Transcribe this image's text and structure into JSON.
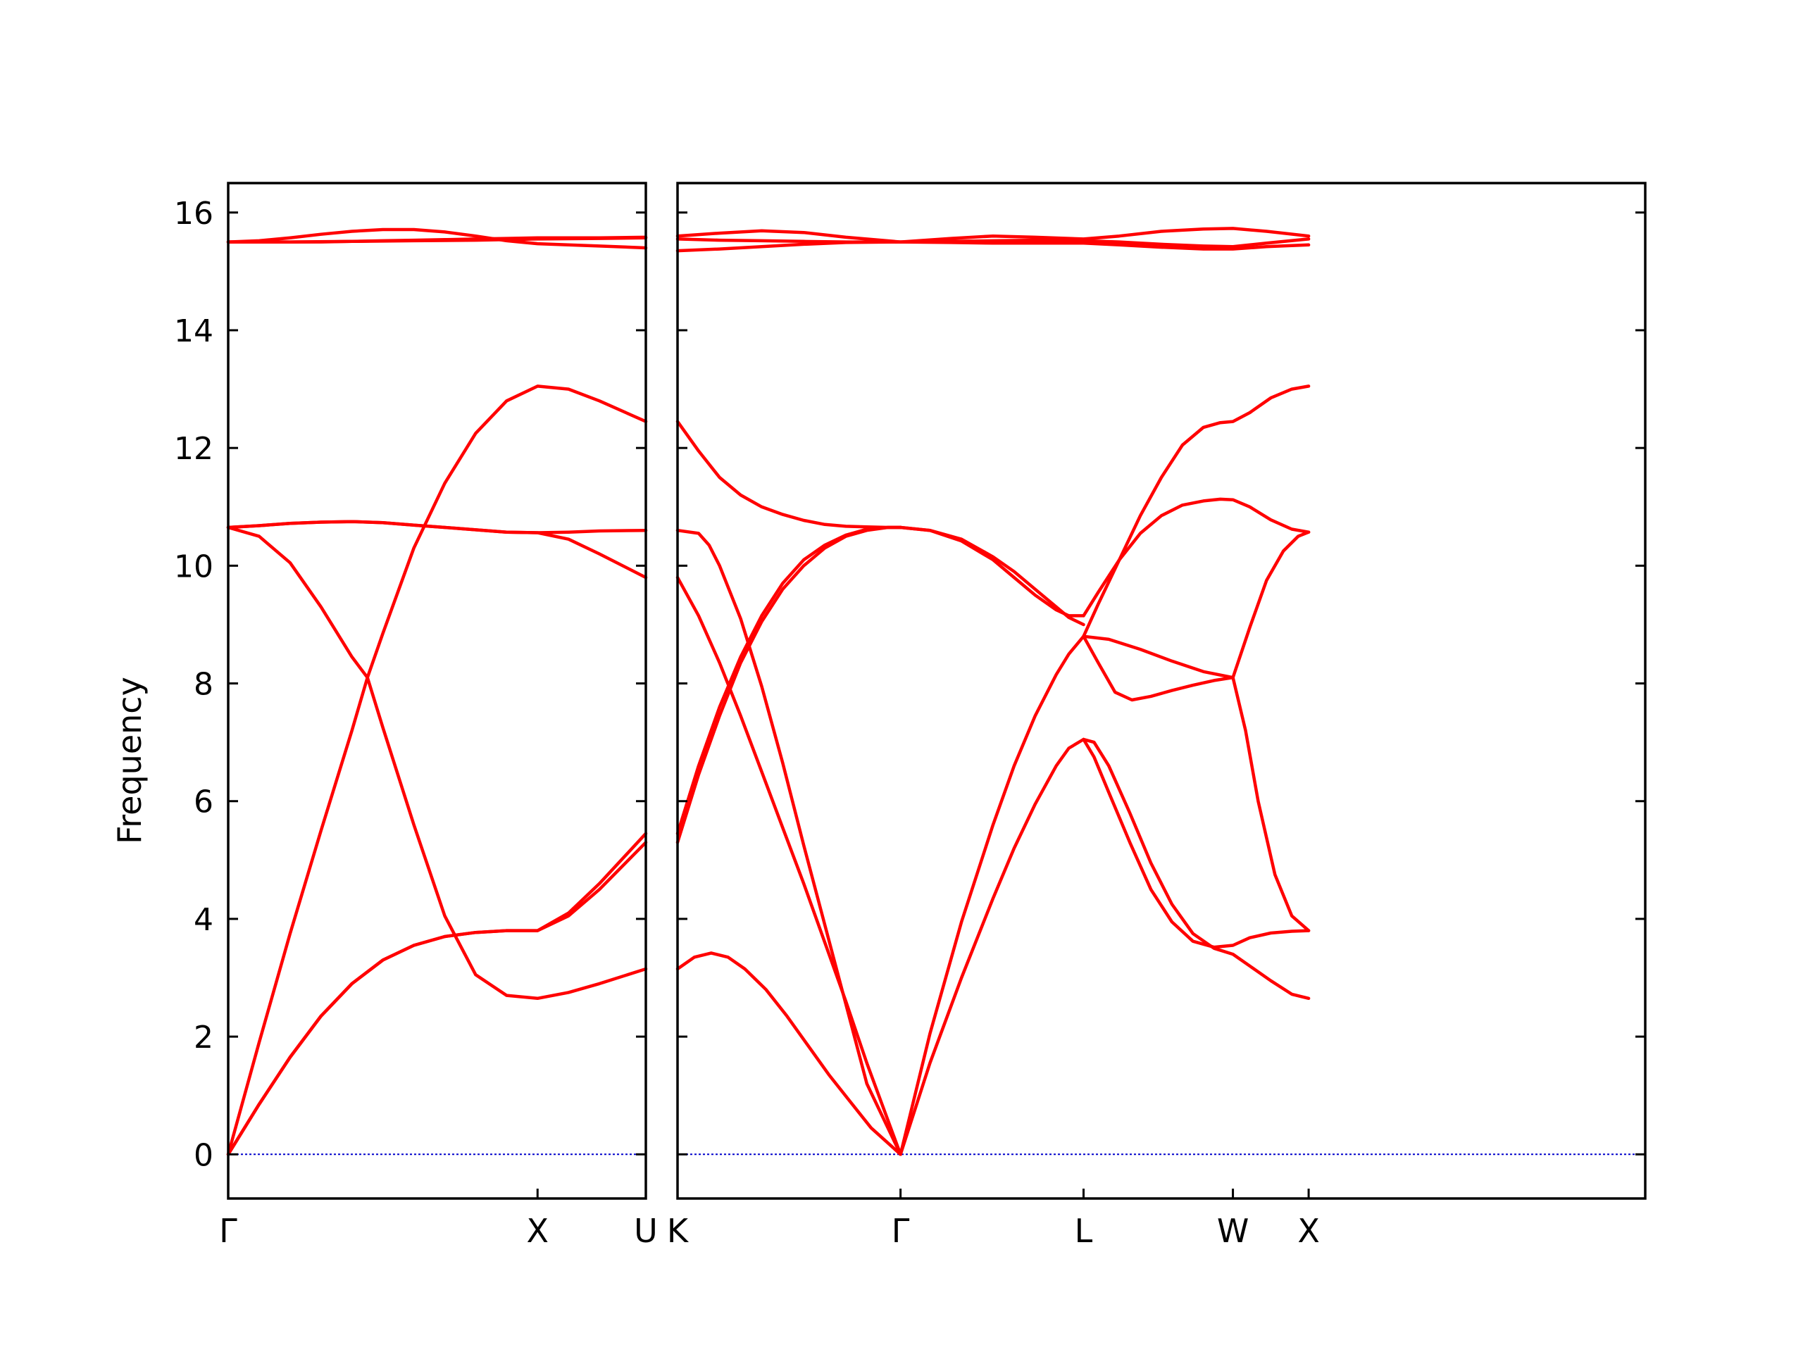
{
  "chart_data": {
    "type": "line",
    "title": "",
    "ylabel": "Frequency",
    "ylim": [
      -0.75,
      16.5
    ],
    "y_ticks": [
      0,
      2,
      4,
      6,
      8,
      10,
      12,
      14,
      16
    ],
    "grid": false,
    "colors": {
      "bands": "#ff0000",
      "zero_line": "#0000cc",
      "axes": "#000000"
    },
    "panels": [
      {
        "name": "left",
        "xlim": [
          0,
          1.35
        ],
        "ticks": [
          {
            "x": 0,
            "label": "Γ"
          },
          {
            "x": 1.0,
            "label": "X"
          },
          {
            "x": 1.35,
            "label": "U"
          }
        ],
        "series": [
          {
            "x": [
              0,
              0.1,
              0.2,
              0.3,
              0.4,
              0.5,
              0.6,
              0.7,
              0.8,
              0.9,
              1.0,
              1.1,
              1.2,
              1.35
            ],
            "y": [
              0,
              0.85,
              1.65,
              2.35,
              2.9,
              3.3,
              3.55,
              3.7,
              3.77,
              3.8,
              3.8,
              4.1,
              4.6,
              5.45
            ]
          },
          {
            "x": [
              0,
              0.1,
              0.2,
              0.3,
              0.4,
              0.5,
              0.6,
              0.7,
              0.8,
              0.9,
              1.0,
              1.1,
              1.2,
              1.35
            ],
            "y": [
              0,
              0.85,
              1.65,
              2.35,
              2.9,
              3.3,
              3.55,
              3.7,
              3.77,
              3.8,
              3.8,
              4.05,
              4.5,
              5.3
            ]
          },
          {
            "x": [
              0,
              0.1,
              0.2,
              0.3,
              0.4,
              0.45,
              0.5,
              0.6,
              0.7,
              0.8,
              0.9,
              1.0,
              1.1,
              1.2,
              1.35
            ],
            "y": [
              0,
              1.9,
              3.75,
              5.5,
              7.2,
              8.1,
              8.85,
              10.3,
              11.4,
              12.25,
              12.8,
              13.05,
              13.0,
              12.8,
              12.45
            ]
          },
          {
            "x": [
              0,
              0.1,
              0.2,
              0.3,
              0.4,
              0.45,
              0.5,
              0.6,
              0.7,
              0.8,
              0.9,
              1.0,
              1.1,
              1.2,
              1.35
            ],
            "y": [
              10.65,
              10.5,
              10.05,
              9.3,
              8.45,
              8.1,
              7.25,
              5.6,
              4.05,
              3.05,
              2.7,
              2.65,
              2.75,
              2.9,
              3.15
            ]
          },
          {
            "x": [
              0,
              0.1,
              0.2,
              0.3,
              0.4,
              0.5,
              0.6,
              0.7,
              0.8,
              0.9,
              1.0,
              1.1,
              1.2,
              1.35
            ],
            "y": [
              10.65,
              10.68,
              10.72,
              10.74,
              10.75,
              10.73,
              10.69,
              10.65,
              10.61,
              10.57,
              10.56,
              10.45,
              10.2,
              9.8
            ]
          },
          {
            "x": [
              0,
              0.1,
              0.2,
              0.3,
              0.4,
              0.5,
              0.6,
              0.7,
              0.8,
              0.9,
              1.0,
              1.1,
              1.2,
              1.35
            ],
            "y": [
              10.65,
              10.68,
              10.72,
              10.74,
              10.75,
              10.73,
              10.69,
              10.65,
              10.61,
              10.57,
              10.56,
              10.57,
              10.59,
              10.6
            ]
          },
          {
            "x": [
              0,
              0.1,
              0.2,
              0.3,
              0.4,
              0.5,
              0.6,
              0.7,
              0.8,
              0.9,
              1.0,
              1.1,
              1.2,
              1.35
            ],
            "y": [
              15.5,
              15.52,
              15.57,
              15.63,
              15.68,
              15.71,
              15.71,
              15.67,
              15.6,
              15.52,
              15.47,
              15.45,
              15.43,
              15.4
            ]
          },
          {
            "x": [
              0,
              0.1,
              0.2,
              0.3,
              0.4,
              0.5,
              0.6,
              0.7,
              0.8,
              0.9,
              1.0,
              1.1,
              1.2,
              1.35
            ],
            "y": [
              15.5,
              15.5,
              15.5,
              15.5,
              15.51,
              15.52,
              15.53,
              15.54,
              15.55,
              15.56,
              15.57,
              15.57,
              15.57,
              15.58
            ]
          },
          {
            "x": [
              0,
              0.2,
              0.4,
              0.6,
              0.8,
              1.0,
              1.2,
              1.35
            ],
            "y": [
              15.5,
              15.5,
              15.51,
              15.52,
              15.53,
              15.55,
              15.56,
              15.57
            ]
          }
        ]
      },
      {
        "name": "right",
        "xlim": [
          0,
          4.6
        ],
        "ticks": [
          {
            "x": 0,
            "label": "K"
          },
          {
            "x": 1.06,
            "label": "Γ"
          },
          {
            "x": 1.93,
            "label": "L"
          },
          {
            "x": 2.64,
            "label": "W"
          },
          {
            "x": 3.0,
            "label": "X"
          }
        ],
        "series": [
          {
            "x": [
              0,
              0.08,
              0.16,
              0.24,
              0.32,
              0.42,
              0.52,
              0.62,
              0.72,
              0.82,
              0.92,
              1.06
            ],
            "y": [
              3.15,
              3.35,
              3.42,
              3.35,
              3.15,
              2.8,
              2.35,
              1.85,
              1.35,
              0.9,
              0.45,
              0
            ]
          },
          {
            "x": [
              0,
              0.1,
              0.2,
              0.3,
              0.4,
              0.5,
              0.6,
              0.7,
              0.8,
              0.9,
              1.06
            ],
            "y": [
              9.8,
              9.15,
              8.35,
              7.45,
              6.5,
              5.55,
              4.6,
              3.6,
              2.6,
              1.55,
              0
            ]
          },
          {
            "x": [
              0,
              0.1,
              0.15,
              0.2,
              0.3,
              0.4,
              0.5,
              0.6,
              0.7,
              0.8,
              0.9,
              1.06
            ],
            "y": [
              10.6,
              10.55,
              10.35,
              10.0,
              9.1,
              7.95,
              6.65,
              5.25,
              3.9,
              2.55,
              1.2,
              0
            ]
          },
          {
            "x": [
              0,
              0.1,
              0.2,
              0.3,
              0.4,
              0.5,
              0.6,
              0.7,
              0.8,
              0.9,
              1.0,
              1.06
            ],
            "y": [
              5.3,
              6.45,
              7.45,
              8.35,
              9.05,
              9.6,
              10.0,
              10.3,
              10.5,
              10.6,
              10.65,
              10.65
            ]
          },
          {
            "x": [
              0,
              0.1,
              0.2,
              0.3,
              0.4,
              0.5,
              0.6,
              0.7,
              0.8,
              0.9,
              1.0,
              1.06
            ],
            "y": [
              5.45,
              6.6,
              7.6,
              8.45,
              9.15,
              9.7,
              10.1,
              10.35,
              10.52,
              10.62,
              10.65,
              10.65
            ]
          },
          {
            "x": [
              0,
              0.1,
              0.2,
              0.3,
              0.4,
              0.5,
              0.6,
              0.7,
              0.8,
              0.9,
              1.0,
              1.06
            ],
            "y": [
              12.45,
              11.95,
              11.5,
              11.2,
              11.0,
              10.87,
              10.77,
              10.7,
              10.67,
              10.66,
              10.65,
              10.65
            ]
          },
          {
            "x": [
              1.06,
              1.2,
              1.35,
              1.5,
              1.6,
              1.7,
              1.8,
              1.86,
              1.93
            ],
            "y": [
              0,
              1.55,
              3.0,
              4.35,
              5.2,
              5.95,
              6.6,
              6.9,
              7.05
            ]
          },
          {
            "x": [
              1.06,
              1.2,
              1.35,
              1.5,
              1.6,
              1.7,
              1.8,
              1.86,
              1.93
            ],
            "y": [
              0,
              2.05,
              3.95,
              5.6,
              6.6,
              7.45,
              8.15,
              8.5,
              8.8
            ]
          },
          {
            "x": [
              1.06,
              1.2,
              1.35,
              1.5,
              1.6,
              1.7,
              1.8,
              1.86,
              1.93
            ],
            "y": [
              10.65,
              10.6,
              10.45,
              10.15,
              9.9,
              9.6,
              9.3,
              9.12,
              9.0
            ]
          },
          {
            "x": [
              1.06,
              1.2,
              1.35,
              1.5,
              1.6,
              1.7,
              1.8,
              1.86,
              1.93
            ],
            "y": [
              10.65,
              10.6,
              10.42,
              10.1,
              9.8,
              9.5,
              9.25,
              9.15,
              9.15
            ]
          },
          {
            "x": [
              1.93,
              1.98,
              2.05,
              2.15,
              2.25,
              2.35,
              2.45,
              2.55,
              2.64,
              2.72,
              2.82,
              2.92,
              3.0
            ],
            "y": [
              7.05,
              7.0,
              6.6,
              5.8,
              4.95,
              4.25,
              3.75,
              3.5,
              3.4,
              3.2,
              2.95,
              2.72,
              2.65
            ]
          },
          {
            "x": [
              1.93,
              1.98,
              2.05,
              2.15,
              2.25,
              2.35,
              2.45,
              2.55,
              2.64,
              2.72,
              2.82,
              2.92,
              3.0
            ],
            "y": [
              7.05,
              6.75,
              6.15,
              5.3,
              4.5,
              3.95,
              3.62,
              3.52,
              3.55,
              3.68,
              3.76,
              3.79,
              3.8
            ]
          },
          {
            "x": [
              1.93,
              2.0,
              2.08,
              2.16,
              2.25,
              2.35,
              2.45,
              2.55,
              2.64
            ],
            "y": [
              8.8,
              8.35,
              7.85,
              7.72,
              7.78,
              7.88,
              7.97,
              8.05,
              8.1
            ]
          },
          {
            "x": [
              1.93,
              2.05,
              2.2,
              2.35,
              2.5,
              2.64
            ],
            "y": [
              8.8,
              8.75,
              8.58,
              8.38,
              8.2,
              8.1
            ]
          },
          {
            "x": [
              2.64,
              2.7,
              2.76,
              2.84,
              2.92,
              3.0
            ],
            "y": [
              8.1,
              7.2,
              6.0,
              4.75,
              4.05,
              3.8
            ]
          },
          {
            "x": [
              2.64,
              2.72,
              2.8,
              2.88,
              2.95,
              3.0
            ],
            "y": [
              8.1,
              8.95,
              9.75,
              10.25,
              10.5,
              10.57
            ]
          },
          {
            "x": [
              1.93,
              2.0,
              2.1,
              2.2,
              2.3,
              2.4,
              2.5,
              2.58,
              2.64,
              2.72,
              2.82,
              2.92,
              3.0
            ],
            "y": [
              9.15,
              9.55,
              10.1,
              10.55,
              10.85,
              11.03,
              11.1,
              11.13,
              11.12,
              11.0,
              10.78,
              10.62,
              10.57
            ]
          },
          {
            "x": [
              1.93,
              2.0,
              2.1,
              2.2,
              2.3,
              2.4,
              2.5,
              2.58,
              2.64,
              2.72,
              2.82,
              2.92,
              3.0
            ],
            "y": [
              8.8,
              9.35,
              10.1,
              10.85,
              11.5,
              12.05,
              12.35,
              12.43,
              12.45,
              12.6,
              12.85,
              13.0,
              13.05
            ]
          },
          {
            "x": [
              0,
              0.2,
              0.4,
              0.6,
              0.8,
              1.06,
              1.3,
              1.5,
              1.7,
              1.93,
              2.1,
              2.3,
              2.5,
              2.64,
              2.8,
              3.0
            ],
            "y": [
              15.6,
              15.65,
              15.69,
              15.66,
              15.58,
              15.5,
              15.56,
              15.6,
              15.58,
              15.55,
              15.6,
              15.68,
              15.72,
              15.73,
              15.68,
              15.6
            ]
          },
          {
            "x": [
              0,
              0.2,
              0.4,
              0.6,
              0.8,
              1.06,
              1.3,
              1.5,
              1.7,
              1.93,
              2.1,
              2.3,
              2.5,
              2.64,
              2.8,
              3.0
            ],
            "y": [
              15.35,
              15.38,
              15.42,
              15.46,
              15.49,
              15.5,
              15.49,
              15.48,
              15.48,
              15.48,
              15.45,
              15.41,
              15.38,
              15.38,
              15.42,
              15.45
            ]
          },
          {
            "x": [
              0,
              0.2,
              0.4,
              0.6,
              0.8,
              1.06,
              1.3,
              1.5,
              1.7,
              1.93,
              2.1,
              2.3,
              2.5,
              2.64,
              2.8,
              3.0
            ],
            "y": [
              15.55,
              15.53,
              15.52,
              15.51,
              15.5,
              15.5,
              15.51,
              15.52,
              15.53,
              15.52,
              15.5,
              15.46,
              15.43,
              15.42,
              15.48,
              15.55
            ]
          }
        ]
      }
    ]
  }
}
